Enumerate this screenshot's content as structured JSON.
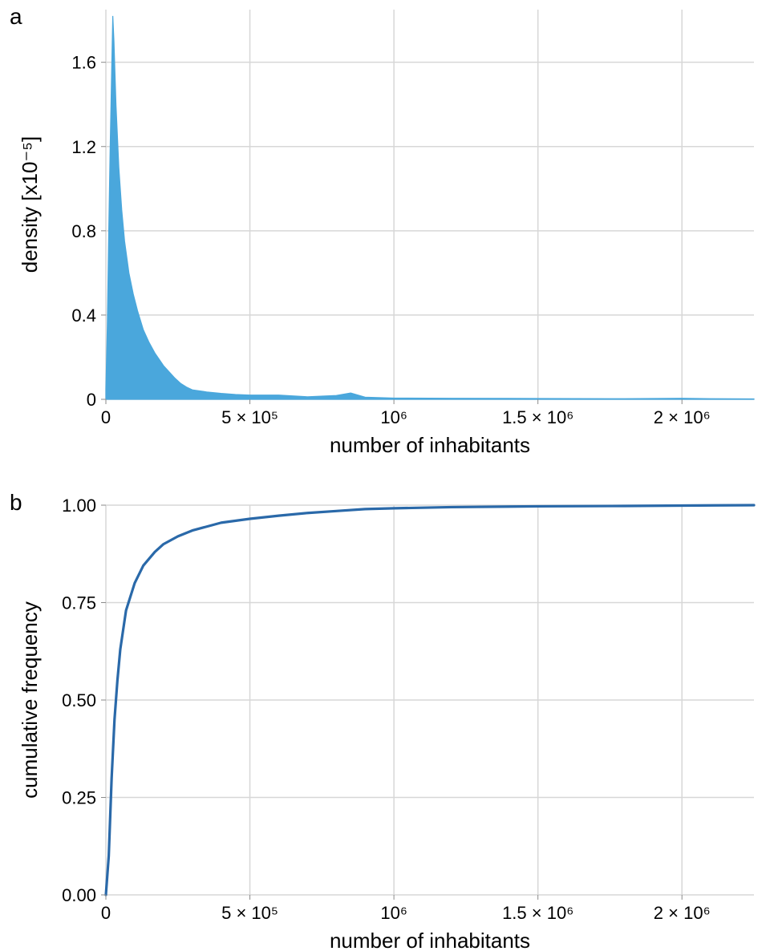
{
  "panel_a": {
    "type": "area-density",
    "panel_label": "a",
    "panel_label_fontsize": 28,
    "panel_label_fontweight": 400,
    "panel_label_color": "#000000",
    "xlabel": "number of inhabitants",
    "ylabel": "density [x10⁻⁵]",
    "label_fontsize": 26,
    "label_color": "#000000",
    "tick_fontsize": 22,
    "tick_color": "#000000",
    "background_color": "#ffffff",
    "grid_color": "#d7d7d7",
    "grid_width": 1.5,
    "fill_color": "#4aa7dc",
    "line_color": "#4aa7dc",
    "line_width": 1.2,
    "xlim": [
      0,
      2250000
    ],
    "ylim": [
      0,
      1.85
    ],
    "xtick_positions": [
      0,
      500000,
      1000000,
      1500000,
      2000000
    ],
    "xtick_labels": [
      "0",
      "5 × 10⁵",
      "10⁶",
      "1.5 × 10⁶",
      "2 × 10⁶"
    ],
    "ytick_positions": [
      0,
      0.4,
      0.8,
      1.2,
      1.6
    ],
    "ytick_labels": [
      "0",
      "0.4",
      "0.8",
      "1.2",
      "1.6"
    ],
    "data": [
      [
        0,
        0.05
      ],
      [
        5000,
        0.35
      ],
      [
        10000,
        0.8
      ],
      [
        15000,
        1.2
      ],
      [
        20000,
        1.55
      ],
      [
        24000,
        1.82
      ],
      [
        28000,
        1.7
      ],
      [
        35000,
        1.4
      ],
      [
        45000,
        1.1
      ],
      [
        55000,
        0.9
      ],
      [
        65000,
        0.75
      ],
      [
        80000,
        0.6
      ],
      [
        95000,
        0.5
      ],
      [
        110000,
        0.42
      ],
      [
        130000,
        0.33
      ],
      [
        150000,
        0.27
      ],
      [
        170000,
        0.22
      ],
      [
        190000,
        0.18
      ],
      [
        200000,
        0.16
      ],
      [
        220000,
        0.13
      ],
      [
        240000,
        0.1
      ],
      [
        260000,
        0.075
      ],
      [
        280000,
        0.058
      ],
      [
        300000,
        0.045
      ],
      [
        350000,
        0.035
      ],
      [
        400000,
        0.028
      ],
      [
        450000,
        0.023
      ],
      [
        500000,
        0.02
      ],
      [
        600000,
        0.02
      ],
      [
        700000,
        0.012
      ],
      [
        800000,
        0.018
      ],
      [
        850000,
        0.03
      ],
      [
        900000,
        0.01
      ],
      [
        1000000,
        0.006
      ],
      [
        1200000,
        0.005
      ],
      [
        1500000,
        0.004
      ],
      [
        1800000,
        0.003
      ],
      [
        2000000,
        0.005
      ],
      [
        2100000,
        0.003
      ],
      [
        2250000,
        0.002
      ]
    ]
  },
  "panel_b": {
    "type": "line-cdf",
    "panel_label": "b",
    "panel_label_fontsize": 28,
    "panel_label_fontweight": 400,
    "panel_label_color": "#000000",
    "xlabel": "number of inhabitants",
    "ylabel": "cumulative frequency",
    "label_fontsize": 26,
    "label_color": "#000000",
    "tick_fontsize": 22,
    "tick_color": "#000000",
    "background_color": "#ffffff",
    "grid_color": "#d7d7d7",
    "grid_width": 1.5,
    "line_color": "#2a69a9",
    "line_width": 3.2,
    "xlim": [
      0,
      2250000
    ],
    "ylim": [
      0,
      1.0
    ],
    "xtick_positions": [
      0,
      500000,
      1000000,
      1500000,
      2000000
    ],
    "xtick_labels": [
      "0",
      "5 × 10⁵",
      "10⁶",
      "1.5 × 10⁶",
      "2 × 10⁶"
    ],
    "ytick_positions": [
      0,
      0.25,
      0.5,
      0.75,
      1.0
    ],
    "ytick_labels": [
      "0.00",
      "0.25",
      "0.50",
      "0.75",
      "1.00"
    ],
    "data": [
      [
        0,
        0.0
      ],
      [
        10000,
        0.1
      ],
      [
        20000,
        0.3
      ],
      [
        30000,
        0.45
      ],
      [
        40000,
        0.55
      ],
      [
        50000,
        0.63
      ],
      [
        70000,
        0.73
      ],
      [
        100000,
        0.8
      ],
      [
        130000,
        0.845
      ],
      [
        170000,
        0.88
      ],
      [
        200000,
        0.9
      ],
      [
        250000,
        0.92
      ],
      [
        300000,
        0.935
      ],
      [
        400000,
        0.955
      ],
      [
        500000,
        0.965
      ],
      [
        600000,
        0.973
      ],
      [
        700000,
        0.98
      ],
      [
        800000,
        0.985
      ],
      [
        900000,
        0.99
      ],
      [
        1000000,
        0.992
      ],
      [
        1200000,
        0.995
      ],
      [
        1500000,
        0.997
      ],
      [
        1800000,
        0.998
      ],
      [
        2000000,
        0.999
      ],
      [
        2250000,
        1.0
      ]
    ]
  }
}
